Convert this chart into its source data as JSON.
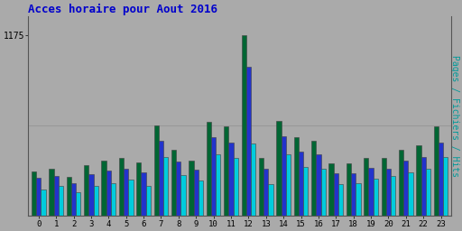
{
  "title": "Acces horaire pour Aout 2016",
  "title_color": "#0000cc",
  "title_fontsize": 9,
  "ylabel_right": "Pages / Fichiers / Hits",
  "ylabel_right_color": "#009999",
  "hours": [
    0,
    1,
    2,
    3,
    4,
    5,
    6,
    7,
    8,
    9,
    10,
    11,
    12,
    13,
    14,
    15,
    16,
    17,
    18,
    19,
    20,
    21,
    22,
    23
  ],
  "pages": [
    290,
    310,
    255,
    330,
    360,
    380,
    350,
    590,
    430,
    360,
    610,
    580,
    1175,
    380,
    620,
    510,
    490,
    340,
    340,
    380,
    375,
    430,
    460,
    580
  ],
  "fichiers": [
    250,
    260,
    215,
    270,
    295,
    310,
    285,
    490,
    355,
    300,
    510,
    480,
    970,
    305,
    520,
    420,
    400,
    280,
    275,
    315,
    310,
    360,
    385,
    480
  ],
  "hits": [
    175,
    195,
    155,
    195,
    215,
    235,
    195,
    385,
    265,
    230,
    400,
    375,
    470,
    210,
    400,
    320,
    310,
    210,
    215,
    245,
    260,
    285,
    305,
    385
  ],
  "ytick_label": "1175",
  "ytick_value": 1175,
  "bar_width": 0.27,
  "background_color": "#aaaaaa",
  "plot_bg_color": "#aaaaaa",
  "bar_color_pages": "#006633",
  "bar_color_fichiers": "#2233cc",
  "bar_color_hits": "#00ccdd",
  "bar_edge_color": "#404040",
  "ylim": [
    0,
    1300
  ],
  "grid_y": [
    590
  ],
  "grid_color": "#999999",
  "figsize": [
    5.12,
    2.56
  ],
  "dpi": 100
}
